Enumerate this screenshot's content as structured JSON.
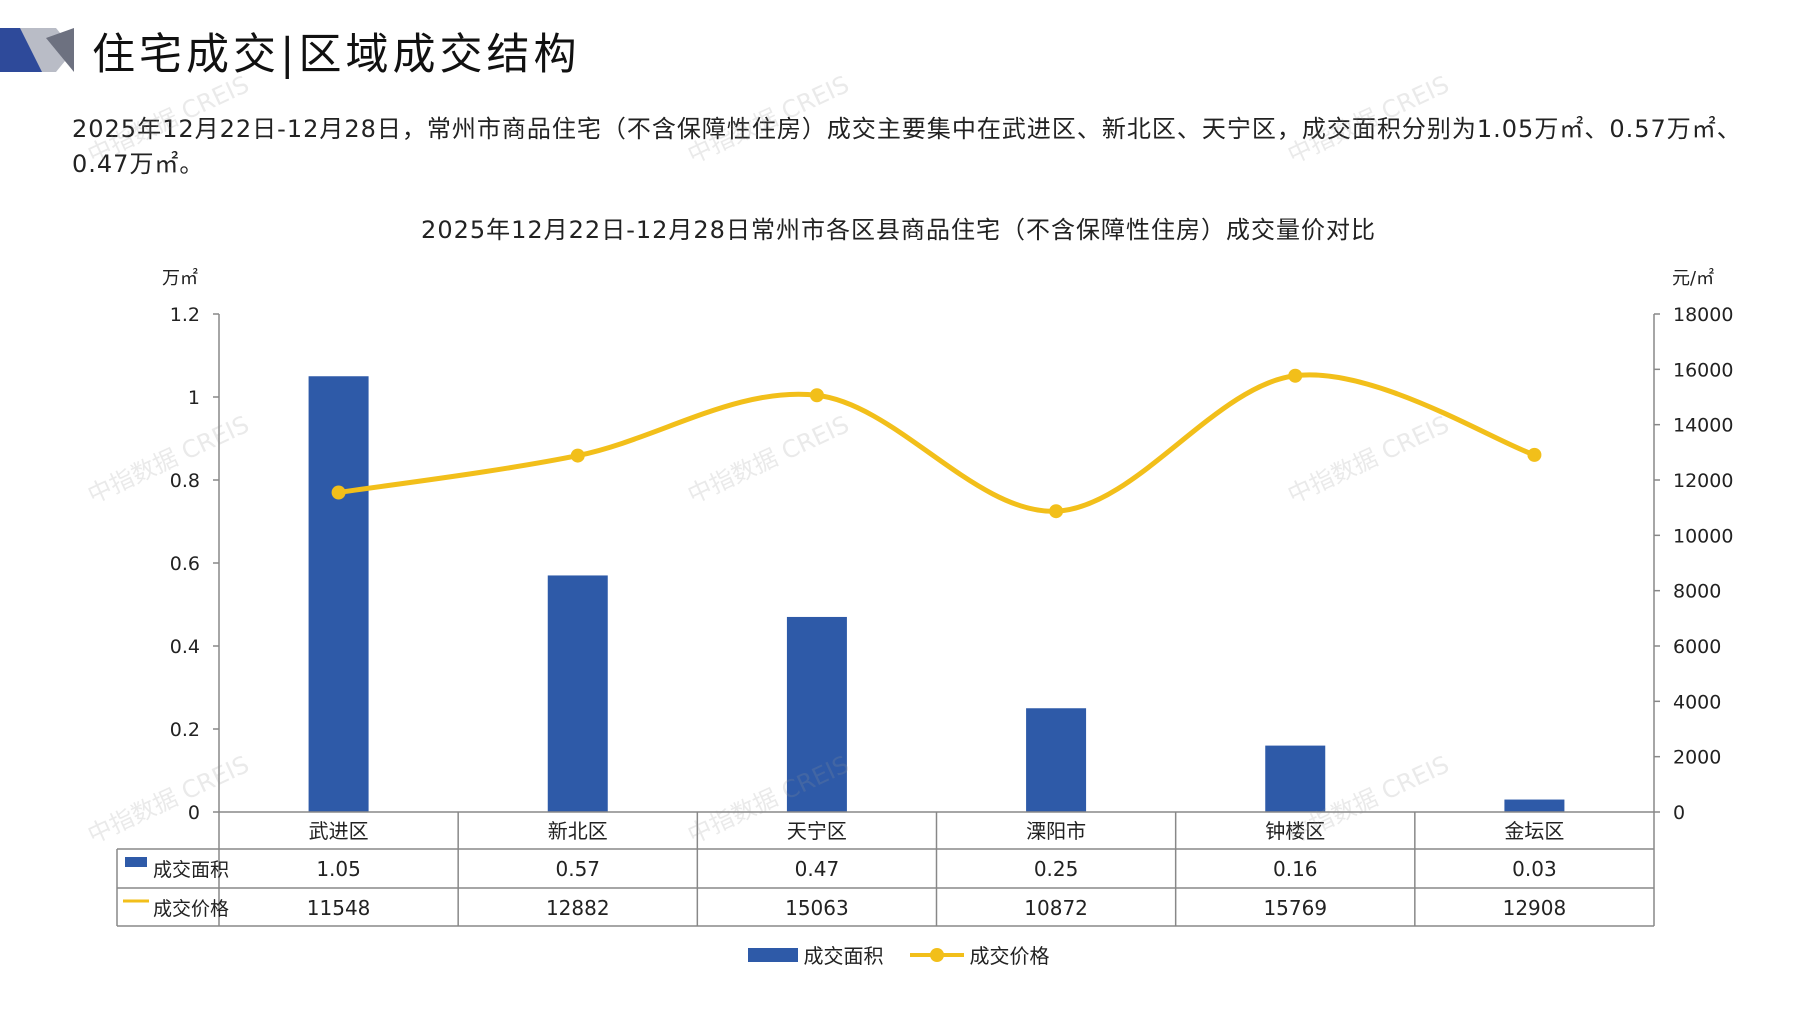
{
  "header": {
    "title": "住宅成交|区域成交结构",
    "summary": "2025年12月22日-12月28日，常州市商品住宅（不含保障性住房）成交主要集中在武进区、新北区、天宁区，成交面积分别为1.05万㎡、0.57万㎡、0.47万㎡。"
  },
  "watermark": "中指数据 CREIS",
  "colors": {
    "bar": "#2e5aa8",
    "line": "#f2bf1a",
    "grid": "#888888",
    "header_accent": "#2e4a9a"
  },
  "chart_data": {
    "type": "bar",
    "title": "2025年12月22日-12月28日常州市各区县商品住宅（不含保障性住房）成交量价对比",
    "categories": [
      "武进区",
      "新北区",
      "天宁区",
      "溧阳市",
      "钟楼区",
      "金坛区"
    ],
    "series": [
      {
        "name": "成交面积",
        "type": "bar",
        "axis": "left",
        "values": [
          1.05,
          0.57,
          0.47,
          0.25,
          0.16,
          0.03
        ],
        "display": [
          "1.05",
          "0.57",
          "0.47",
          "0.25",
          "0.16",
          "0.03"
        ]
      },
      {
        "name": "成交价格",
        "type": "line",
        "axis": "right",
        "values": [
          11548,
          12882,
          15063,
          10872,
          15769,
          12908
        ],
        "display": [
          "11548",
          "12882",
          "15063",
          "10872",
          "15769",
          "12908"
        ]
      }
    ],
    "y_left": {
      "unit": "万㎡",
      "ylim": [
        0,
        1.2
      ],
      "ticks": [
        "0",
        "0.2",
        "0.4",
        "0.6",
        "0.8",
        "1",
        "1.2"
      ]
    },
    "y_right": {
      "unit": "元/㎡",
      "ylim": [
        0,
        18000
      ],
      "ticks": [
        "0",
        "2000",
        "4000",
        "6000",
        "8000",
        "10000",
        "12000",
        "14000",
        "16000",
        "18000"
      ]
    },
    "data_table": true,
    "legend": "bottom"
  }
}
